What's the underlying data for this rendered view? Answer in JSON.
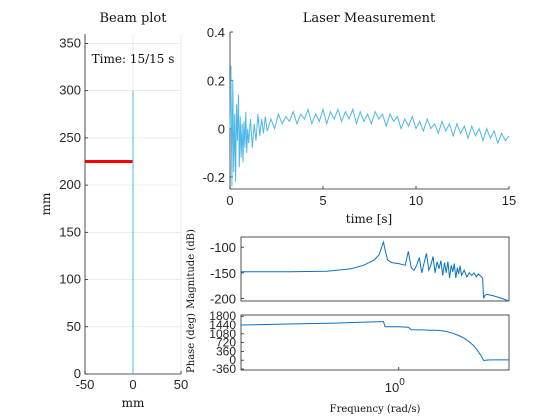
{
  "colors": {
    "beam": "#4db8e8",
    "laser": "#4db8e8",
    "bode": "#0b72bd",
    "marker": "#ff0000",
    "axis": "#262626"
  },
  "chart_data": [
    {
      "type": "line",
      "id": "beam",
      "title": "Beam plot",
      "annotation": "Time: 15/15 s",
      "xlabel": "mm",
      "ylabel": "mm",
      "xlim": [
        -50,
        50
      ],
      "ylim": [
        0,
        360
      ],
      "xticks": [
        "-50",
        "0",
        "50"
      ],
      "yticks": [
        "0",
        "50",
        "100",
        "150",
        "200",
        "250",
        "300",
        "350"
      ],
      "grid": true,
      "series": [
        {
          "x": [
            0,
            0
          ],
          "y": [
            0,
            300
          ]
        }
      ],
      "marker": {
        "x": [
          -50,
          0
        ],
        "y": 225
      }
    },
    {
      "type": "line",
      "id": "laser",
      "title": "Laser Measurement",
      "xlabel": "time [s]",
      "ylabel": "",
      "xlim": [
        0,
        15
      ],
      "ylim": [
        -0.25,
        0.4
      ],
      "xticks": [
        "0",
        "5",
        "10",
        "15"
      ],
      "yticks": [
        "-0.2",
        "0",
        "0.2",
        "0.4"
      ],
      "series": [
        {
          "x": [
            0,
            0.05,
            0.1,
            0.15,
            0.2,
            0.25,
            0.3,
            0.35,
            0.4,
            0.45,
            0.5,
            0.55,
            0.6,
            0.65,
            0.7,
            0.75,
            0.8,
            0.85,
            0.9,
            0.95,
            1.0,
            1.1,
            1.2,
            1.3,
            1.4,
            1.5,
            1.6,
            1.7,
            1.8,
            1.9,
            2.0,
            2.2,
            2.4,
            2.6,
            2.8,
            3.0,
            3.2,
            3.4,
            3.6,
            3.8,
            4.0,
            4.2,
            4.4,
            4.6,
            4.8,
            5.0,
            5.2,
            5.4,
            5.6,
            5.8,
            6.0,
            6.2,
            6.4,
            6.6,
            6.8,
            7.0,
            7.2,
            7.4,
            7.6,
            7.8,
            8.0,
            8.2,
            8.4,
            8.6,
            8.8,
            9.0,
            9.2,
            9.4,
            9.6,
            9.8,
            10.0,
            10.2,
            10.4,
            10.6,
            10.8,
            11.0,
            11.2,
            11.4,
            11.6,
            11.8,
            12.0,
            12.2,
            12.4,
            12.6,
            12.8,
            13.0,
            13.2,
            13.4,
            13.6,
            13.8,
            14.0,
            14.2,
            14.4,
            14.6,
            14.8,
            15.0
          ],
          "y": [
            0.0,
            0.26,
            -0.24,
            0.2,
            -0.18,
            0.06,
            -0.22,
            0.1,
            -0.05,
            0.14,
            -0.16,
            0.05,
            -0.12,
            0.02,
            -0.14,
            0.03,
            -0.08,
            0.07,
            -0.1,
            0.0,
            -0.06,
            0.04,
            -0.08,
            0.02,
            -0.05,
            0.06,
            -0.03,
            0.04,
            -0.02,
            0.05,
            -0.01,
            0.04,
            0.0,
            0.06,
            0.02,
            0.05,
            0.03,
            0.07,
            0.02,
            0.06,
            0.04,
            0.08,
            0.02,
            0.06,
            0.03,
            0.08,
            0.02,
            0.07,
            0.04,
            0.08,
            0.03,
            0.07,
            0.04,
            0.08,
            0.02,
            0.07,
            0.03,
            0.06,
            0.02,
            0.07,
            0.04,
            0.06,
            0.01,
            0.06,
            0.03,
            0.05,
            0.0,
            0.04,
            0.01,
            0.05,
            0.0,
            0.03,
            -0.01,
            0.04,
            0.0,
            0.02,
            -0.02,
            0.03,
            -0.01,
            0.02,
            -0.03,
            0.02,
            -0.02,
            0.01,
            -0.04,
            0.01,
            -0.03,
            0.0,
            -0.05,
            0.0,
            -0.04,
            -0.01,
            -0.06,
            -0.02,
            -0.05,
            -0.03
          ]
        }
      ]
    },
    {
      "type": "line",
      "id": "bode-mag",
      "ylabel": "Magnitude (dB)",
      "xscale": "log",
      "ylim": [
        -205,
        -80
      ],
      "yticks": [
        "-100",
        "-150",
        "-200"
      ],
      "series": [
        {
          "x": [
            0.1,
            0.2,
            0.35,
            0.5,
            0.6,
            0.7,
            0.75,
            0.78,
            0.8,
            0.82,
            0.85,
            0.9,
            1.0,
            1.1,
            1.15,
            1.2,
            1.25,
            1.3,
            1.35,
            1.4,
            1.45,
            1.5,
            1.55,
            1.6,
            1.65,
            1.7,
            1.75,
            1.8,
            1.85,
            1.9,
            1.95,
            2.0,
            2.05,
            2.1,
            2.15,
            2.2,
            2.25,
            2.3,
            2.35,
            2.4,
            2.45,
            2.5,
            2.6,
            2.7,
            2.8,
            2.9,
            3.0,
            3.1,
            3.2,
            3.3,
            3.4,
            3.45,
            3.5,
            3.6,
            4.0,
            4.5,
            5.0
          ],
          "y": [
            -148,
            -148,
            -147,
            -142,
            -135,
            -125,
            -115,
            -100,
            -90,
            -105,
            -125,
            -130,
            -132,
            -135,
            -108,
            -140,
            -145,
            -135,
            -120,
            -150,
            -130,
            -112,
            -145,
            -135,
            -118,
            -150,
            -128,
            -142,
            -126,
            -155,
            -130,
            -150,
            -128,
            -160,
            -135,
            -148,
            -132,
            -160,
            -140,
            -152,
            -136,
            -155,
            -145,
            -158,
            -150,
            -155,
            -150,
            -158,
            -152,
            -156,
            -160,
            -200,
            -195,
            -192,
            -195,
            -200,
            -205
          ]
        }
      ]
    },
    {
      "type": "line",
      "id": "bode-phase",
      "xlabel": "Frequency  (rad/s)",
      "ylabel": "Phase (deg)",
      "xscale": "log",
      "xticks": [
        "10^0"
      ],
      "ylim": [
        -400,
        1850
      ],
      "yticks": [
        "1800",
        "1440",
        "1080",
        "720",
        "360",
        "0",
        "-360"
      ],
      "series": [
        {
          "x": [
            0.1,
            0.2,
            0.4,
            0.6,
            0.8,
            0.82,
            1.0,
            1.15,
            1.2,
            1.4,
            1.6,
            1.8,
            2.0,
            2.2,
            2.4,
            2.6,
            2.8,
            3.0,
            3.2,
            3.35,
            3.45,
            3.55,
            3.7,
            4.0,
            4.5,
            5.0
          ],
          "y": [
            1440,
            1480,
            1520,
            1560,
            1580,
            1370,
            1370,
            1350,
            1250,
            1240,
            1230,
            1220,
            1180,
            1100,
            1010,
            900,
            750,
            580,
            350,
            150,
            -10,
            0,
            10,
            15,
            15,
            15
          ]
        }
      ]
    }
  ]
}
